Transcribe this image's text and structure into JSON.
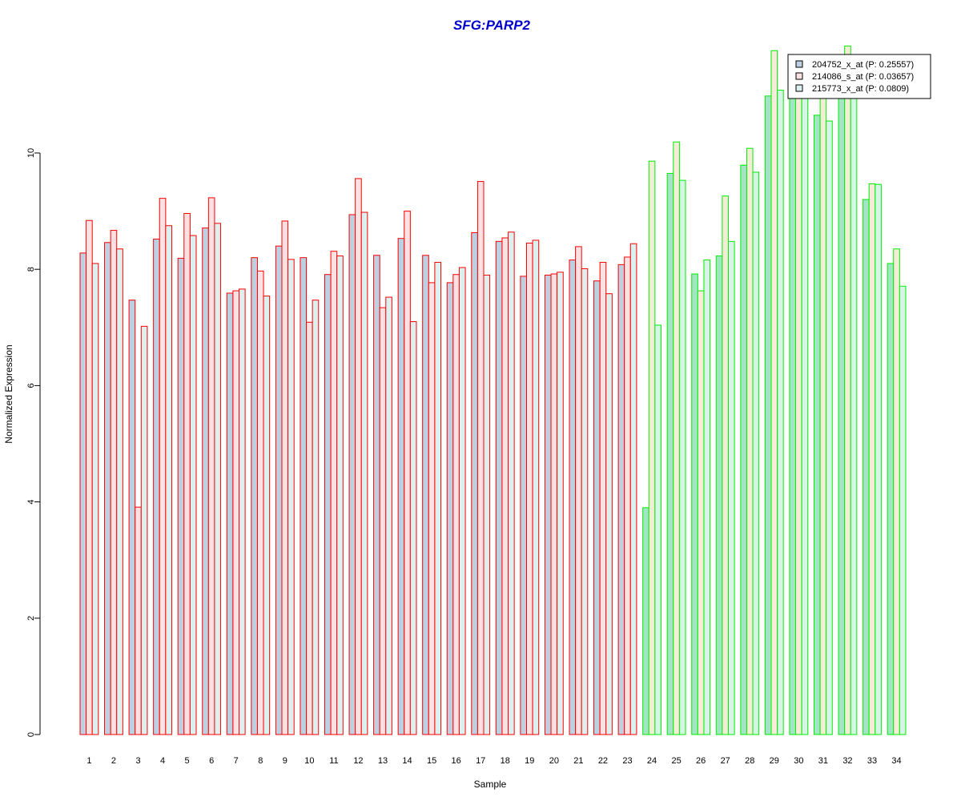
{
  "chart_data": {
    "type": "bar",
    "title": "SFG:PARP2",
    "xlabel": "Sample",
    "ylabel": "Normalized Expression",
    "ylim": [
      0,
      12
    ],
    "yticks": [
      "0",
      "2",
      "4",
      "6",
      "8",
      "10"
    ],
    "categories": [
      "1",
      "2",
      "3",
      "4",
      "5",
      "6",
      "7",
      "8",
      "9",
      "10",
      "11",
      "12",
      "13",
      "14",
      "15",
      "16",
      "17",
      "18",
      "19",
      "20",
      "21",
      "22",
      "23",
      "24",
      "25",
      "26",
      "27",
      "28",
      "29",
      "30",
      "31",
      "32",
      "33",
      "34"
    ],
    "group_colors": {
      "red_outline": "#ff0000",
      "green_outline": "#00ee00"
    },
    "red_group_samples": 23,
    "series": [
      {
        "name": "204752_x_at (P: 0.25557)",
        "fill": "#bdd0e2",
        "fill_green": "#a3e4c5",
        "values": [
          8.28,
          8.46,
          7.47,
          8.52,
          8.19,
          8.71,
          7.59,
          8.2,
          8.4,
          8.2,
          7.91,
          8.94,
          8.24,
          8.53,
          8.24,
          7.77,
          8.63,
          8.48,
          7.88,
          7.9,
          8.16,
          7.8,
          8.08,
          3.9,
          9.65,
          7.92,
          8.23,
          9.79,
          10.98,
          11.19,
          10.65,
          11.12,
          9.2,
          8.1
        ]
      },
      {
        "name": "214086_s_at (P: 0.03657)",
        "fill": "#fbe1e1",
        "fill_green": "#f5ecd8",
        "values": [
          8.84,
          8.67,
          3.91,
          9.22,
          8.96,
          9.23,
          7.63,
          7.97,
          8.83,
          7.09,
          8.31,
          9.56,
          7.34,
          9.0,
          7.77,
          7.91,
          9.51,
          8.54,
          8.45,
          7.92,
          8.39,
          8.12,
          8.21,
          9.86,
          10.19,
          7.63,
          9.26,
          10.08,
          11.76,
          11.4,
          11.65,
          11.84,
          9.47,
          8.35
        ]
      },
      {
        "name": "215773_x_at (P: 0.0809)",
        "fill": "#ddf0f0",
        "fill_green": "#d6f5e6",
        "values": [
          8.1,
          8.35,
          7.02,
          8.75,
          8.58,
          8.79,
          7.66,
          7.54,
          8.17,
          7.47,
          8.23,
          8.98,
          7.52,
          7.1,
          8.12,
          8.03,
          7.9,
          8.64,
          8.5,
          7.95,
          8.01,
          7.58,
          8.44,
          7.04,
          9.53,
          8.16,
          8.48,
          9.67,
          11.08,
          11.1,
          10.55,
          11.5,
          9.46,
          7.71
        ]
      }
    ],
    "legend": {
      "placement": "top-right"
    },
    "grid": false
  }
}
